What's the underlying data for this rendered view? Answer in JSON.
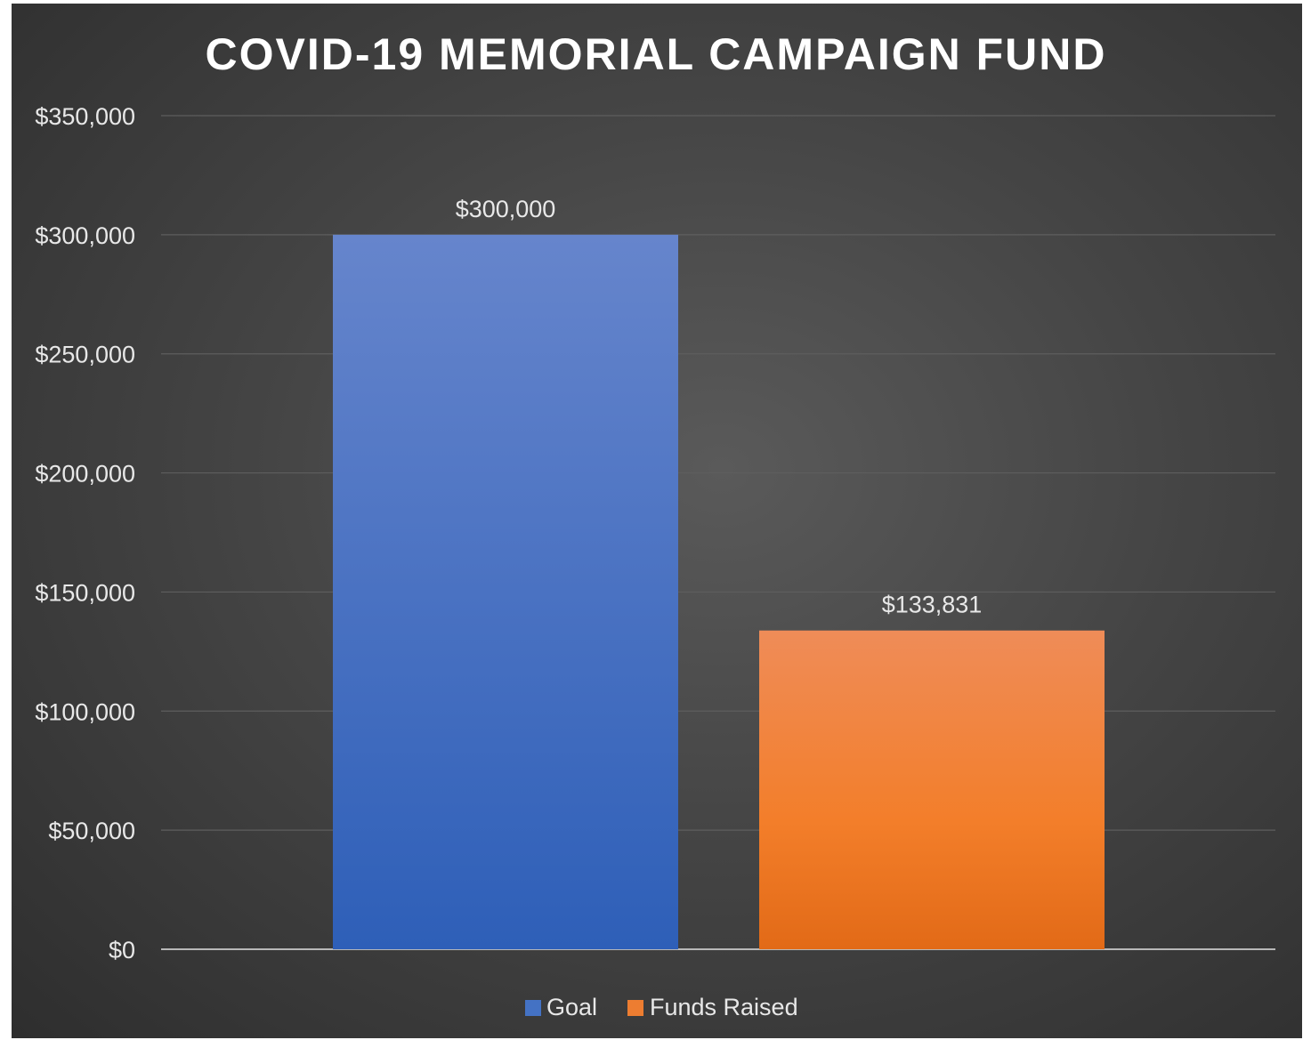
{
  "chart_data": {
    "type": "bar",
    "title": "COVID-19 MEMORIAL CAMPAIGN FUND",
    "xlabel": "",
    "ylabel": "",
    "ylim": [
      0,
      350000
    ],
    "yticks": [
      0,
      50000,
      100000,
      150000,
      200000,
      250000,
      300000,
      350000
    ],
    "ytick_labels": [
      "$0",
      "$50,000",
      "$100,000",
      "$150,000",
      "$200,000",
      "$250,000",
      "$300,000",
      "$350,000"
    ],
    "grid": true,
    "legend_position": "bottom",
    "series": [
      {
        "name": "Goal",
        "value": 300000,
        "label": "$300,000",
        "color": "#4472C4"
      },
      {
        "name": "Funds Raised",
        "value": 133831,
        "label": "$133,831",
        "color": "#ED7D31"
      }
    ]
  }
}
